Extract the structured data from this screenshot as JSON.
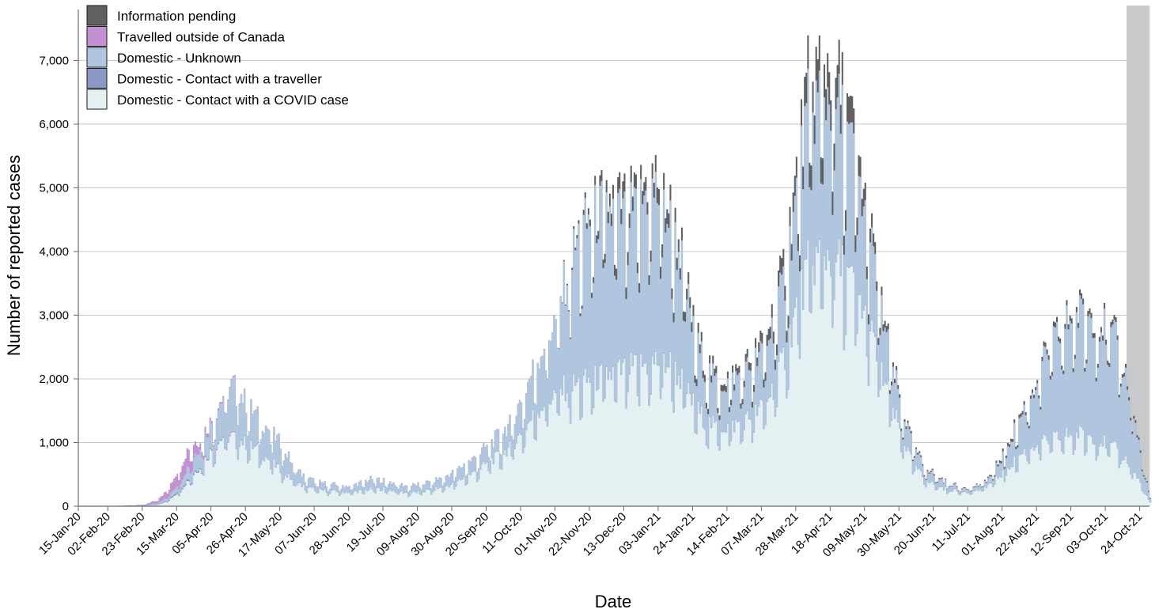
{
  "chart_data": {
    "type": "area",
    "title": "",
    "xlabel": "Date",
    "ylabel": "Number of reported cases",
    "ylim": [
      0,
      7800
    ],
    "yticks": [
      0,
      1000,
      2000,
      3000,
      4000,
      5000,
      6000,
      7000
    ],
    "ytick_labels": [
      "0",
      "1,000",
      "2,000",
      "3,000",
      "4,000",
      "5,000",
      "6,000",
      "7,000"
    ],
    "x_start": "2020-01-15",
    "x_end": "2021-10-30",
    "xtick_labels": [
      "15-Jan-20",
      "02-Feb-20",
      "23-Feb-20",
      "15-Mar-20",
      "05-Apr-20",
      "26-Apr-20",
      "17-May-20",
      "07-Jun-20",
      "28-Jun-20",
      "19-Jul-20",
      "09-Aug-20",
      "30-Aug-20",
      "20-Sep-20",
      "11-Oct-20",
      "01-Nov-20",
      "22-Nov-20",
      "13-Dec-20",
      "03-Jan-21",
      "24-Jan-21",
      "14-Feb-21",
      "07-Mar-21",
      "28-Mar-21",
      "18-Apr-21",
      "09-May-21",
      "30-May-21",
      "20-Jun-21",
      "11-Jul-21",
      "01-Aug-21",
      "22-Aug-21",
      "12-Sep-21",
      "03-Oct-21",
      "24-Oct-21"
    ],
    "shaded_region_start": "2021-10-16",
    "legend_position": "top-left",
    "grid": "horizontal",
    "dates": [
      "15-Jan-20",
      "02-Feb-20",
      "23-Feb-20",
      "01-Mar-20",
      "08-Mar-20",
      "15-Mar-20",
      "22-Mar-20",
      "29-Mar-20",
      "05-Apr-20",
      "12-Apr-20",
      "19-Apr-20",
      "26-Apr-20",
      "03-May-20",
      "10-May-20",
      "17-May-20",
      "24-May-20",
      "31-May-20",
      "07-Jun-20",
      "14-Jun-20",
      "21-Jun-20",
      "28-Jun-20",
      "05-Jul-20",
      "12-Jul-20",
      "19-Jul-20",
      "26-Jul-20",
      "02-Aug-20",
      "09-Aug-20",
      "16-Aug-20",
      "23-Aug-20",
      "30-Aug-20",
      "06-Sep-20",
      "13-Sep-20",
      "20-Sep-20",
      "27-Sep-20",
      "04-Oct-20",
      "11-Oct-20",
      "18-Oct-20",
      "25-Oct-20",
      "01-Nov-20",
      "08-Nov-20",
      "15-Nov-20",
      "22-Nov-20",
      "29-Nov-20",
      "06-Dec-20",
      "13-Dec-20",
      "20-Dec-20",
      "27-Dec-20",
      "03-Jan-21",
      "10-Jan-21",
      "17-Jan-21",
      "24-Jan-21",
      "31-Jan-21",
      "07-Feb-21",
      "14-Feb-21",
      "21-Feb-21",
      "28-Feb-21",
      "07-Mar-21",
      "14-Mar-21",
      "21-Mar-21",
      "28-Mar-21",
      "04-Apr-21",
      "11-Apr-21",
      "18-Apr-21",
      "25-Apr-21",
      "02-May-21",
      "09-May-21",
      "16-May-21",
      "23-May-21",
      "30-May-21",
      "06-Jun-21",
      "13-Jun-21",
      "20-Jun-21",
      "27-Jun-21",
      "04-Jul-21",
      "11-Jul-21",
      "18-Jul-21",
      "25-Jul-21",
      "01-Aug-21",
      "08-Aug-21",
      "15-Aug-21",
      "22-Aug-21",
      "29-Aug-21",
      "05-Sep-21",
      "12-Sep-21",
      "19-Sep-21",
      "26-Sep-21",
      "03-Oct-21",
      "10-Oct-21",
      "17-Oct-21",
      "24-Oct-21",
      "30-Oct-21"
    ],
    "series": [
      {
        "name": "Domestic - Contact with a COVID case",
        "color": "#e4f0f2",
        "values": [
          0,
          0,
          5,
          15,
          60,
          200,
          400,
          600,
          850,
          1050,
          1050,
          950,
          850,
          700,
          550,
          400,
          300,
          250,
          230,
          220,
          210,
          230,
          260,
          260,
          230,
          200,
          210,
          240,
          280,
          330,
          430,
          520,
          650,
          760,
          880,
          1100,
          1350,
          1550,
          1700,
          1800,
          1850,
          1900,
          1950,
          2000,
          2050,
          2100,
          2150,
          2200,
          2150,
          1900,
          1550,
          1300,
          1200,
          1200,
          1250,
          1350,
          1500,
          1800,
          2300,
          3000,
          3600,
          3800,
          3800,
          3600,
          3300,
          2900,
          2300,
          1700,
          1150,
          700,
          450,
          330,
          260,
          230,
          220,
          250,
          350,
          500,
          680,
          850,
          950,
          1000,
          1050,
          1100,
          1100,
          1050,
          950,
          850,
          650,
          350,
          50
        ]
      },
      {
        "name": "Domestic - Contact with a traveller",
        "color": "#8b97c4",
        "values": [
          0,
          0,
          2,
          5,
          15,
          30,
          30,
          25,
          20,
          15,
          10,
          8,
          6,
          5,
          5,
          5,
          5,
          5,
          5,
          5,
          5,
          5,
          5,
          5,
          5,
          5,
          5,
          5,
          5,
          5,
          5,
          5,
          5,
          5,
          5,
          5,
          5,
          5,
          8,
          8,
          8,
          8,
          8,
          8,
          8,
          8,
          8,
          8,
          8,
          8,
          8,
          8,
          8,
          8,
          8,
          8,
          8,
          8,
          8,
          8,
          8,
          8,
          8,
          8,
          8,
          8,
          8,
          8,
          5,
          5,
          5,
          5,
          5,
          5,
          5,
          5,
          5,
          5,
          5,
          5,
          5,
          5,
          5,
          5,
          5,
          5,
          5,
          5,
          5,
          5,
          2
        ]
      },
      {
        "name": "Domestic - Unknown",
        "color": "#b0c6de",
        "values": [
          0,
          0,
          5,
          20,
          40,
          100,
          200,
          300,
          400,
          600,
          800,
          600,
          500,
          450,
          400,
          250,
          150,
          120,
          100,
          90,
          90,
          120,
          150,
          120,
          110,
          100,
          110,
          120,
          140,
          170,
          190,
          210,
          250,
          300,
          350,
          500,
          700,
          900,
          1100,
          1700,
          2200,
          2400,
          2500,
          2400,
          2300,
          2300,
          2600,
          2500,
          2100,
          1750,
          1050,
          800,
          650,
          650,
          700,
          750,
          800,
          950,
          1150,
          1700,
          2300,
          2400,
          2400,
          2200,
          1950,
          1500,
          1100,
          700,
          450,
          280,
          170,
          140,
          100,
          60,
          50,
          60,
          100,
          250,
          450,
          650,
          950,
          1350,
          1550,
          1750,
          1800,
          1800,
          1700,
          1600,
          1100,
          450,
          50
        ]
      },
      {
        "name": "Travelled outside of Canada",
        "color": "#c391d1",
        "values": [
          0,
          2,
          10,
          40,
          100,
          200,
          280,
          100,
          40,
          20,
          10,
          8,
          5,
          5,
          5,
          5,
          5,
          5,
          5,
          5,
          5,
          5,
          5,
          5,
          5,
          5,
          5,
          5,
          5,
          5,
          5,
          5,
          5,
          5,
          5,
          5,
          5,
          5,
          5,
          5,
          5,
          5,
          5,
          5,
          5,
          5,
          5,
          5,
          5,
          5,
          5,
          5,
          5,
          5,
          5,
          5,
          5,
          5,
          5,
          5,
          5,
          5,
          5,
          5,
          5,
          5,
          5,
          5,
          5,
          5,
          5,
          5,
          5,
          5,
          5,
          5,
          5,
          5,
          5,
          5,
          5,
          5,
          5,
          5,
          5,
          5,
          5,
          5,
          5,
          5,
          2
        ]
      },
      {
        "name": "Information pending",
        "color": "#606060",
        "values": [
          0,
          0,
          0,
          0,
          0,
          0,
          0,
          0,
          0,
          0,
          0,
          0,
          0,
          0,
          0,
          0,
          0,
          0,
          0,
          0,
          0,
          0,
          0,
          0,
          0,
          0,
          0,
          0,
          0,
          0,
          0,
          0,
          0,
          0,
          0,
          0,
          0,
          0,
          0,
          20,
          50,
          100,
          150,
          200,
          250,
          200,
          200,
          250,
          220,
          180,
          150,
          120,
          100,
          100,
          100,
          120,
          150,
          200,
          250,
          300,
          450,
          500,
          500,
          450,
          350,
          250,
          150,
          80,
          50,
          30,
          20,
          20,
          10,
          10,
          10,
          10,
          20,
          40,
          50,
          50,
          50,
          70,
          70,
          80,
          80,
          80,
          80,
          60,
          50,
          30,
          10
        ]
      }
    ]
  }
}
